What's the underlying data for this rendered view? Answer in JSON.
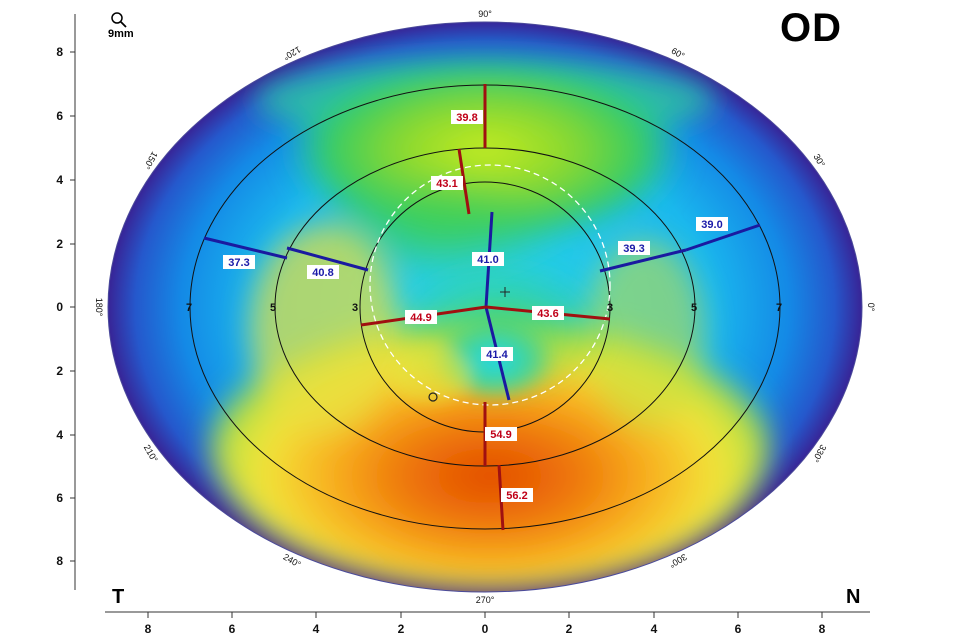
{
  "header": {
    "eye": "OD",
    "zoom": "9mm"
  },
  "orientation": {
    "left": "T",
    "right": "N"
  },
  "axes": {
    "x_ticks": [
      "8",
      "6",
      "4",
      "2",
      "0",
      "2",
      "4",
      "6",
      "8"
    ],
    "y_ticks": [
      "8",
      "6",
      "4",
      "2",
      "0",
      "2",
      "4",
      "6",
      "8"
    ]
  },
  "degree_labels": [
    {
      "deg": 0,
      "label": "0°"
    },
    {
      "deg": 30,
      "label": "30°"
    },
    {
      "deg": 60,
      "label": "60°"
    },
    {
      "deg": 90,
      "label": "90°"
    },
    {
      "deg": 120,
      "label": "120°"
    },
    {
      "deg": 150,
      "label": "150°"
    },
    {
      "deg": 180,
      "label": "180°"
    },
    {
      "deg": 210,
      "label": "210°"
    },
    {
      "deg": 240,
      "label": "240°"
    },
    {
      "deg": 270,
      "label": "270°"
    },
    {
      "deg": 300,
      "label": "300°"
    },
    {
      "deg": 330,
      "label": "330°"
    }
  ],
  "ring_labels": [
    "3",
    "5",
    "7"
  ],
  "measurements": [
    {
      "value": "39.8",
      "color": "#c00018",
      "kind": "steep"
    },
    {
      "value": "43.1",
      "color": "#c00018",
      "kind": "steep"
    },
    {
      "value": "41.0",
      "color": "#1a1aa8",
      "kind": "flat"
    },
    {
      "value": "39.3",
      "color": "#1a1aa8",
      "kind": "flat"
    },
    {
      "value": "39.0",
      "color": "#1a1aa8",
      "kind": "flat"
    },
    {
      "value": "37.3",
      "color": "#1a1aa8",
      "kind": "flat"
    },
    {
      "value": "40.8",
      "color": "#1a1aa8",
      "kind": "flat"
    },
    {
      "value": "44.9",
      "color": "#c00018",
      "kind": "steep"
    },
    {
      "value": "43.6",
      "color": "#c00018",
      "kind": "steep"
    },
    {
      "value": "41.4",
      "color": "#1a1aa8",
      "kind": "flat"
    },
    {
      "value": "54.9",
      "color": "#c00018",
      "kind": "steep"
    },
    {
      "value": "56.2",
      "color": "#c00018",
      "kind": "steep"
    }
  ]
}
